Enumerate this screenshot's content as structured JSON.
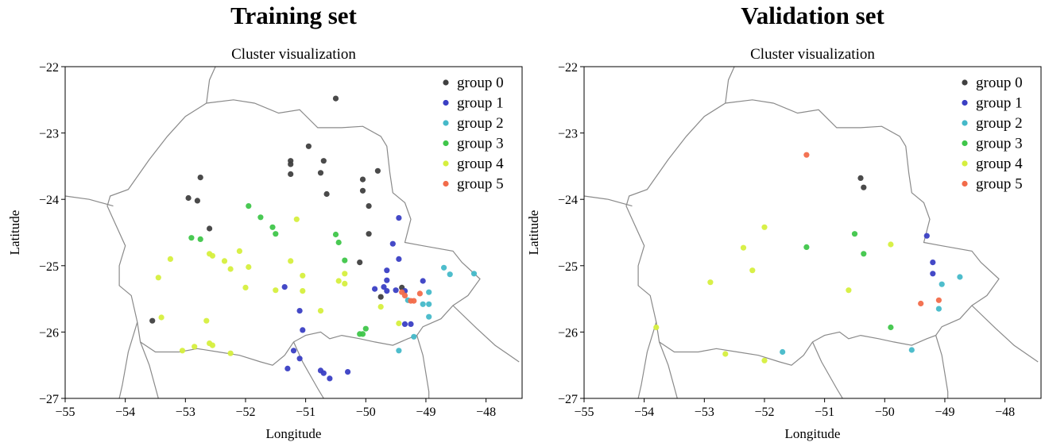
{
  "chart_data": [
    {
      "type": "scatter",
      "panel_title": "Training set",
      "title": "Cluster visualization",
      "xlabel": "Longitude",
      "ylabel": "Latitude",
      "xlim": [
        -55,
        -47.4
      ],
      "ylim": [
        -27,
        -22
      ],
      "xticks": [
        -55,
        -54,
        -53,
        -52,
        -51,
        -50,
        -49,
        -48
      ],
      "yticks": [
        -22,
        -23,
        -24,
        -25,
        -26,
        -27
      ],
      "xtick_labels": [
        "−55",
        "−54",
        "−53",
        "−52",
        "−51",
        "−50",
        "−49",
        "−48"
      ],
      "ytick_labels": [
        "−22",
        "−23",
        "−24",
        "−25",
        "−26",
        "−27"
      ],
      "legend_position": "top-right",
      "series": [
        {
          "name": "group 0",
          "color": "#404040",
          "points": [
            [
              -50.5,
              -22.48
            ],
            [
              -50.95,
              -23.2
            ],
            [
              -51.25,
              -23.42
            ],
            [
              -51.25,
              -23.47
            ],
            [
              -51.25,
              -23.62
            ],
            [
              -50.7,
              -23.42
            ],
            [
              -50.75,
              -23.6
            ],
            [
              -50.65,
              -23.92
            ],
            [
              -49.8,
              -23.57
            ],
            [
              -50.05,
              -23.7
            ],
            [
              -50.05,
              -23.87
            ],
            [
              -49.95,
              -24.1
            ],
            [
              -49.95,
              -24.52
            ],
            [
              -50.1,
              -24.95
            ],
            [
              -52.75,
              -23.67
            ],
            [
              -52.95,
              -23.98
            ],
            [
              -52.8,
              -24.02
            ],
            [
              -52.6,
              -24.44
            ],
            [
              -49.75,
              -25.47
            ],
            [
              -53.55,
              -25.83
            ],
            [
              -49.4,
              -25.33
            ]
          ]
        },
        {
          "name": "group 1",
          "color": "#3a3fc4",
          "points": [
            [
              -49.45,
              -24.28
            ],
            [
              -49.55,
              -24.67
            ],
            [
              -49.45,
              -24.9
            ],
            [
              -49.65,
              -25.07
            ],
            [
              -49.65,
              -25.22
            ],
            [
              -49.7,
              -25.32
            ],
            [
              -49.65,
              -25.38
            ],
            [
              -49.85,
              -25.35
            ],
            [
              -49.5,
              -25.37
            ],
            [
              -49.35,
              -25.38
            ],
            [
              -49.05,
              -25.23
            ],
            [
              -49.35,
              -25.88
            ],
            [
              -49.25,
              -25.88
            ],
            [
              -51.35,
              -25.32
            ],
            [
              -51.1,
              -25.68
            ],
            [
              -51.05,
              -25.97
            ],
            [
              -51.2,
              -26.28
            ],
            [
              -51.1,
              -26.4
            ],
            [
              -51.3,
              -26.55
            ],
            [
              -50.75,
              -26.58
            ],
            [
              -50.7,
              -26.62
            ],
            [
              -50.6,
              -26.7
            ],
            [
              -50.3,
              -26.6
            ]
          ]
        },
        {
          "name": "group 2",
          "color": "#45b9c9",
          "points": [
            [
              -48.7,
              -25.03
            ],
            [
              -48.6,
              -25.13
            ],
            [
              -48.2,
              -25.12
            ],
            [
              -49.3,
              -25.52
            ],
            [
              -48.95,
              -25.4
            ],
            [
              -49.05,
              -25.58
            ],
            [
              -48.95,
              -25.58
            ],
            [
              -48.95,
              -25.77
            ],
            [
              -49.2,
              -26.07
            ],
            [
              -49.45,
              -26.28
            ]
          ]
        },
        {
          "name": "group 3",
          "color": "#3fc64a",
          "points": [
            [
              -51.95,
              -24.1
            ],
            [
              -51.75,
              -24.27
            ],
            [
              -51.55,
              -24.42
            ],
            [
              -51.5,
              -24.52
            ],
            [
              -52.9,
              -24.58
            ],
            [
              -52.75,
              -24.6
            ],
            [
              -50.5,
              -24.53
            ],
            [
              -50.45,
              -24.65
            ],
            [
              -50.35,
              -24.92
            ],
            [
              -50.1,
              -26.03
            ],
            [
              -50.05,
              -26.03
            ],
            [
              -50.0,
              -25.95
            ]
          ]
        },
        {
          "name": "group 4",
          "color": "#d6ef3e",
          "points": [
            [
              -51.15,
              -24.3
            ],
            [
              -52.1,
              -24.78
            ],
            [
              -52.6,
              -24.82
            ],
            [
              -52.55,
              -24.85
            ],
            [
              -52.35,
              -24.93
            ],
            [
              -52.25,
              -25.05
            ],
            [
              -51.95,
              -25.02
            ],
            [
              -51.25,
              -24.93
            ],
            [
              -51.05,
              -25.15
            ],
            [
              -51.05,
              -25.38
            ],
            [
              -51.5,
              -25.37
            ],
            [
              -52.0,
              -25.33
            ],
            [
              -50.35,
              -25.12
            ],
            [
              -50.35,
              -25.27
            ],
            [
              -50.45,
              -25.23
            ],
            [
              -53.25,
              -24.9
            ],
            [
              -53.45,
              -25.18
            ],
            [
              -53.4,
              -25.78
            ],
            [
              -52.65,
              -25.83
            ],
            [
              -52.6,
              -26.17
            ],
            [
              -52.55,
              -26.2
            ],
            [
              -52.85,
              -26.22
            ],
            [
              -53.05,
              -26.28
            ],
            [
              -52.25,
              -26.32
            ],
            [
              -50.75,
              -25.68
            ],
            [
              -49.75,
              -25.62
            ],
            [
              -49.45,
              -25.87
            ]
          ]
        },
        {
          "name": "group 5",
          "color": "#f26b4a",
          "points": [
            [
              -49.4,
              -25.4
            ],
            [
              -49.35,
              -25.45
            ],
            [
              -49.25,
              -25.53
            ],
            [
              -49.2,
              -25.53
            ],
            [
              -49.1,
              -25.42
            ]
          ]
        }
      ]
    },
    {
      "type": "scatter",
      "panel_title": "Validation set",
      "title": "Cluster visualization",
      "xlabel": "Longitude",
      "ylabel": "Latitude",
      "xlim": [
        -55,
        -47.4
      ],
      "ylim": [
        -27,
        -22
      ],
      "xticks": [
        -55,
        -54,
        -53,
        -52,
        -51,
        -50,
        -49,
        -48
      ],
      "yticks": [
        -22,
        -23,
        -24,
        -25,
        -26,
        -27
      ],
      "xtick_labels": [
        "−55",
        "−54",
        "−53",
        "−52",
        "−51",
        "−50",
        "−49",
        "−48"
      ],
      "ytick_labels": [
        "−22",
        "−23",
        "−24",
        "−25",
        "−26",
        "−27"
      ],
      "legend_position": "top-right",
      "series": [
        {
          "name": "group 0",
          "color": "#404040",
          "points": [
            [
              -50.4,
              -23.68
            ],
            [
              -50.35,
              -23.82
            ]
          ]
        },
        {
          "name": "group 1",
          "color": "#3a3fc4",
          "points": [
            [
              -49.3,
              -24.55
            ],
            [
              -49.2,
              -24.95
            ],
            [
              -49.2,
              -25.12
            ]
          ]
        },
        {
          "name": "group 2",
          "color": "#45b9c9",
          "points": [
            [
              -48.75,
              -25.17
            ],
            [
              -49.05,
              -25.28
            ],
            [
              -49.1,
              -25.65
            ],
            [
              -51.7,
              -26.3
            ],
            [
              -49.55,
              -26.27
            ]
          ]
        },
        {
          "name": "group 3",
          "color": "#3fc64a",
          "points": [
            [
              -51.3,
              -24.72
            ],
            [
              -50.5,
              -24.52
            ],
            [
              -50.35,
              -24.82
            ],
            [
              -49.9,
              -25.93
            ]
          ]
        },
        {
          "name": "group 4",
          "color": "#d6ef3e",
          "points": [
            [
              -52.0,
              -24.42
            ],
            [
              -52.35,
              -24.73
            ],
            [
              -52.2,
              -25.07
            ],
            [
              -52.9,
              -25.25
            ],
            [
              -50.6,
              -25.37
            ],
            [
              -49.9,
              -24.68
            ],
            [
              -53.8,
              -25.93
            ],
            [
              -52.65,
              -26.33
            ],
            [
              -52.0,
              -26.43
            ]
          ]
        },
        {
          "name": "group 5",
          "color": "#f26b4a",
          "points": [
            [
              -51.3,
              -23.33
            ],
            [
              -49.4,
              -25.57
            ],
            [
              -49.1,
              -25.52
            ]
          ]
        }
      ]
    }
  ]
}
